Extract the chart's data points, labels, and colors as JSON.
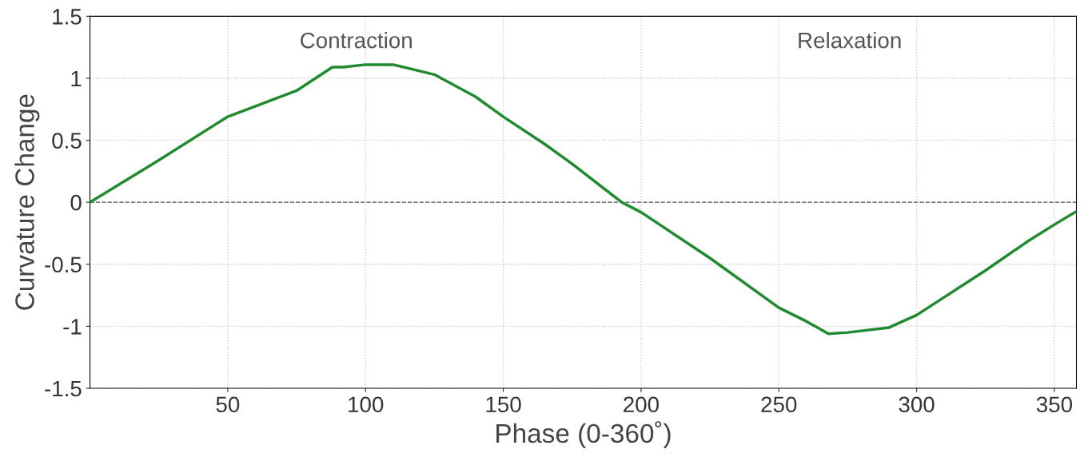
{
  "chart_data": {
    "type": "line",
    "xlabel": "Phase (0-360˚)",
    "ylabel": "Curvature Change",
    "series": [
      {
        "color": "#1f8a2e",
        "x": [
          0,
          25,
          50,
          75,
          88,
          92,
          100,
          110,
          125,
          140,
          150,
          165,
          175,
          193,
          200,
          225,
          250,
          260,
          268,
          275,
          290,
          300,
          325,
          340,
          350,
          357.5
        ],
        "values": [
          0,
          0.34,
          0.69,
          0.9,
          1.09,
          1.09,
          1.11,
          1.11,
          1.03,
          0.85,
          0.69,
          0.47,
          0.31,
          0,
          -0.08,
          -0.45,
          -0.85,
          -0.96,
          -1.06,
          -1.05,
          -1.01,
          -0.91,
          -0.55,
          -0.32,
          -0.18,
          -0.08
        ]
      }
    ],
    "xlim": [
      0,
      358
    ],
    "xticks": [
      50,
      100,
      150,
      200,
      250,
      300,
      350
    ],
    "ylim": [
      -1.5,
      1.5
    ],
    "yticks": [
      -1.5,
      -1,
      -0.5,
      0,
      0.5,
      1,
      1.5
    ],
    "grid": true,
    "line_style": "solid",
    "marker": "none",
    "ref_lines": [
      {
        "axis": "y",
        "value": 0,
        "color": "#555555",
        "line_style": "dashed"
      }
    ],
    "annotations": [
      "Contraction",
      "Relaxation"
    ]
  }
}
